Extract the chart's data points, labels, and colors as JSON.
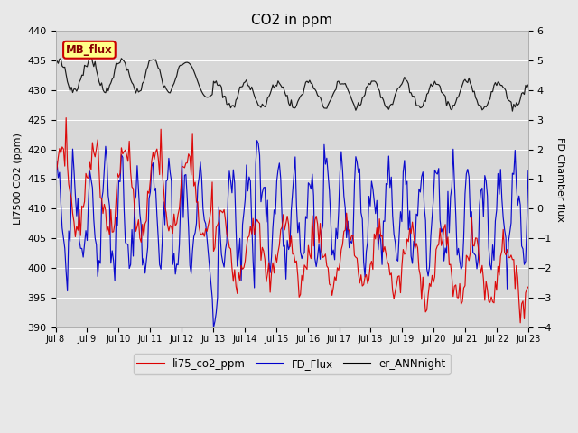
{
  "title": "CO2 in ppm",
  "ylabel_left": "LI7500 CO2 (ppm)",
  "ylabel_right": "FD Chamber flux",
  "ylim_left": [
    390,
    440
  ],
  "ylim_right": [
    -4.0,
    6.0
  ],
  "xlim": [
    0,
    15
  ],
  "xtick_labels": [
    "Jul 8",
    "Jul 9",
    "Jul 10",
    "Jul 11",
    "Jul 12",
    "Jul 13",
    "Jul 14",
    "Jul 15",
    "Jul 16",
    "Jul 17",
    "Jul 18",
    "Jul 19",
    "Jul 20",
    "Jul 21",
    "Jul 22",
    "Jul 23"
  ],
  "bg_color": "#e8e8e8",
  "plot_bg": "#d8d8d8",
  "mb_flux_label": "MB_flux",
  "legend_entries": [
    "li75_co2_ppm",
    "FD_Flux",
    "er_ANNnight"
  ],
  "legend_colors": [
    "#dd0000",
    "#0000cc",
    "#000000"
  ],
  "line_colors": [
    "#dd0000",
    "#0000cc",
    "#111111"
  ],
  "title_fontsize": 11,
  "figsize": [
    6.4,
    4.8
  ],
  "dpi": 100
}
